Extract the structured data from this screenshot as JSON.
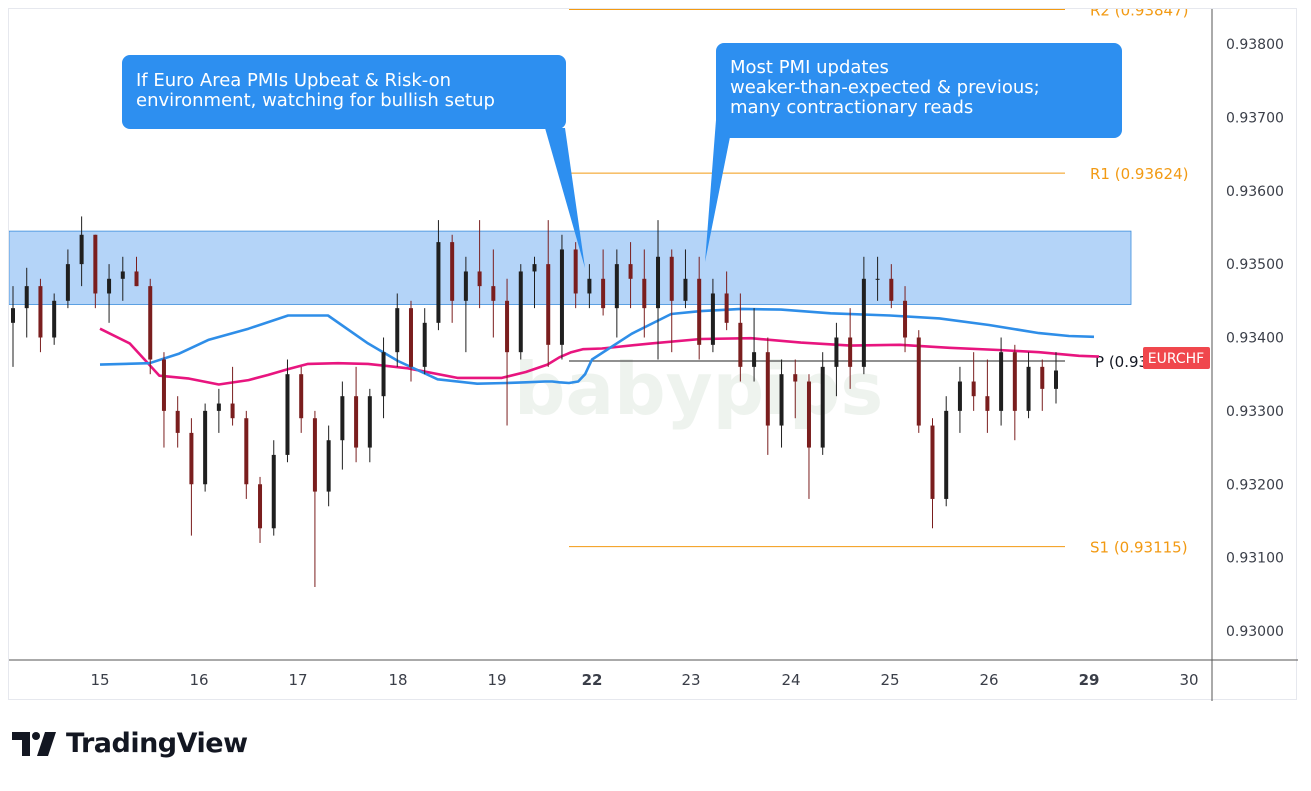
{
  "brand": {
    "name": "TradingView",
    "logo_icon": "tradingview-logo-icon",
    "watermark": "babypips"
  },
  "symbol_tag": "EURCHF",
  "callouts": [
    {
      "lines": [
        "If Euro Area PMIs Upbeat & Risk-on",
        "environment, watching for bullish setup"
      ]
    },
    {
      "lines": [
        "Most PMI updates",
        "weaker-than-expected & previous;",
        "many contractionary reads"
      ]
    }
  ],
  "colors": {
    "up_candle": "#1f1f1f",
    "down_candle": "#7a1e1e",
    "ma_fast": "#e8157f",
    "ma_slow": "#2f8ee8",
    "zone_fill": "#a7cdf7",
    "pivot_line": "#f29a13",
    "callout_bg": "#2d8ff0",
    "tag_bg": "#f0474d"
  },
  "chart_data": {
    "type": "candlestick",
    "symbol": "EURCHF",
    "ylim": [
      0.92955,
      0.93857
    ],
    "y_ticks": [
      "0.93000",
      "0.93100",
      "0.93200",
      "0.93300",
      "0.93400",
      "0.93500",
      "0.93600",
      "0.93700",
      "0.93800"
    ],
    "x_ticks": [
      "15",
      "16",
      "17",
      "18",
      "19",
      "22",
      "23",
      "24",
      "25",
      "26",
      "29",
      "30"
    ],
    "grid": false,
    "pivot_levels": [
      {
        "label": "R2 (0.93847)",
        "value": 0.93847
      },
      {
        "label": "R1 (0.93624)",
        "value": 0.93624
      },
      {
        "label": "P (0.93368)",
        "value": 0.93368
      },
      {
        "label": "S1 (0.93115)",
        "value": 0.93115
      }
    ],
    "resistance_zone": {
      "low": 0.93445,
      "high": 0.93545
    },
    "moving_averages": [
      {
        "color": "pink",
        "points": [
          [
            15,
            0.93412
          ],
          [
            15.3,
            0.93392
          ],
          [
            15.6,
            0.93348
          ],
          [
            15.9,
            0.93344
          ],
          [
            16.2,
            0.93336
          ],
          [
            16.5,
            0.93342
          ],
          [
            16.7,
            0.93349
          ],
          [
            16.9,
            0.93357
          ],
          [
            17.1,
            0.93364
          ],
          [
            17.4,
            0.93365
          ],
          [
            17.7,
            0.93364
          ],
          [
            18.1,
            0.93358
          ],
          [
            18.6,
            0.93345
          ],
          [
            19.1,
            0.93345
          ],
          [
            19.6,
            0.93353
          ],
          [
            20.1,
            0.93363
          ],
          [
            20.6,
            0.93373
          ],
          [
            21.1,
            0.9338
          ],
          [
            21.6,
            0.93384
          ],
          [
            22.1,
            0.93385
          ],
          [
            22.6,
            0.93392
          ],
          [
            23.1,
            0.93398
          ],
          [
            23.6,
            0.93399
          ],
          [
            24.1,
            0.93393
          ],
          [
            24.6,
            0.93389
          ],
          [
            25.1,
            0.9339
          ],
          [
            25.6,
            0.93386
          ],
          [
            26.1,
            0.93383
          ],
          [
            26.5,
            0.9338
          ],
          [
            26.9,
            0.93375
          ],
          [
            27.1,
            0.93374
          ]
        ]
      },
      {
        "color": "blue",
        "points": [
          [
            15,
            0.93363
          ],
          [
            15.5,
            0.93365
          ],
          [
            15.8,
            0.93378
          ],
          [
            16.1,
            0.93397
          ],
          [
            16.5,
            0.93412
          ],
          [
            16.9,
            0.9343
          ],
          [
            17.3,
            0.9343
          ],
          [
            17.7,
            0.93392
          ],
          [
            18,
            0.93368
          ],
          [
            18.4,
            0.93343
          ],
          [
            18.8,
            0.93337
          ],
          [
            19.2,
            0.93338
          ],
          [
            19.6,
            0.93339
          ],
          [
            20,
            0.9334
          ],
          [
            20.3,
            0.9334
          ],
          [
            20.6,
            0.93339
          ],
          [
            21,
            0.93338
          ],
          [
            21.4,
            0.9334
          ],
          [
            21.7,
            0.9335
          ],
          [
            22,
            0.9337
          ],
          [
            22.4,
            0.93405
          ],
          [
            22.8,
            0.93432
          ],
          [
            23.1,
            0.93436
          ],
          [
            23.5,
            0.93439
          ],
          [
            23.9,
            0.93438
          ],
          [
            24.4,
            0.93433
          ],
          [
            25,
            0.9343
          ],
          [
            25.5,
            0.93426
          ],
          [
            26,
            0.93417
          ],
          [
            26.5,
            0.93406
          ],
          [
            26.8,
            0.93402
          ],
          [
            27.05,
            0.93401
          ]
        ]
      }
    ],
    "candles_ohlc": [
      [
        0.9342,
        0.9347,
        0.9336,
        0.9344
      ],
      [
        0.9344,
        0.93495,
        0.934,
        0.9347
      ],
      [
        0.9347,
        0.9348,
        0.9338,
        0.934
      ],
      [
        0.934,
        0.9346,
        0.9339,
        0.9345
      ],
      [
        0.9345,
        0.9352,
        0.9344,
        0.935
      ],
      [
        0.935,
        0.93565,
        0.9347,
        0.9354
      ],
      [
        0.9354,
        0.9354,
        0.9344,
        0.9346
      ],
      [
        0.9346,
        0.935,
        0.9342,
        0.9348
      ],
      [
        0.9348,
        0.9351,
        0.9345,
        0.9349
      ],
      [
        0.9349,
        0.9351,
        0.9347,
        0.9347
      ],
      [
        0.9347,
        0.9348,
        0.9335,
        0.9337
      ],
      [
        0.9337,
        0.9338,
        0.9325,
        0.933
      ],
      [
        0.933,
        0.9332,
        0.9325,
        0.9327
      ],
      [
        0.9327,
        0.9329,
        0.9313,
        0.932
      ],
      [
        0.932,
        0.9331,
        0.9319,
        0.933
      ],
      [
        0.933,
        0.9333,
        0.9327,
        0.9331
      ],
      [
        0.9331,
        0.9336,
        0.9328,
        0.9329
      ],
      [
        0.9329,
        0.933,
        0.9318,
        0.932
      ],
      [
        0.932,
        0.9321,
        0.9312,
        0.9314
      ],
      [
        0.9314,
        0.9326,
        0.9313,
        0.9324
      ],
      [
        0.9324,
        0.9337,
        0.9323,
        0.9335
      ],
      [
        0.9335,
        0.9336,
        0.9327,
        0.9329
      ],
      [
        0.9329,
        0.933,
        0.9306,
        0.9319
      ],
      [
        0.9319,
        0.9328,
        0.9317,
        0.9326
      ],
      [
        0.9326,
        0.9334,
        0.9322,
        0.9332
      ],
      [
        0.9332,
        0.9336,
        0.9323,
        0.9325
      ],
      [
        0.9325,
        0.9333,
        0.9323,
        0.9332
      ],
      [
        0.9332,
        0.934,
        0.9329,
        0.9338
      ],
      [
        0.9338,
        0.9346,
        0.9336,
        0.9344
      ],
      [
        0.9344,
        0.9345,
        0.9334,
        0.9336
      ],
      [
        0.9336,
        0.9344,
        0.9335,
        0.9342
      ],
      [
        0.9342,
        0.9356,
        0.9341,
        0.9353
      ],
      [
        0.9353,
        0.9354,
        0.9342,
        0.9345
      ],
      [
        0.9345,
        0.9351,
        0.9338,
        0.9349
      ],
      [
        0.9349,
        0.9356,
        0.9344,
        0.9347
      ],
      [
        0.9347,
        0.9352,
        0.934,
        0.9345
      ],
      [
        0.9345,
        0.9348,
        0.9328,
        0.9338
      ],
      [
        0.9338,
        0.935,
        0.9337,
        0.9349
      ],
      [
        0.9349,
        0.9351,
        0.9344,
        0.935
      ],
      [
        0.935,
        0.9356,
        0.9336,
        0.9339
      ],
      [
        0.9339,
        0.9354,
        0.9337,
        0.9352
      ],
      [
        0.9352,
        0.9353,
        0.9344,
        0.9346
      ],
      [
        0.9346,
        0.935,
        0.9344,
        0.9348
      ],
      [
        0.9348,
        0.9352,
        0.9343,
        0.9344
      ],
      [
        0.9344,
        0.9352,
        0.934,
        0.935
      ],
      [
        0.935,
        0.9353,
        0.9344,
        0.9348
      ],
      [
        0.9348,
        0.9352,
        0.934,
        0.9344
      ],
      [
        0.9344,
        0.9356,
        0.9337,
        0.9351
      ],
      [
        0.9351,
        0.9352,
        0.9338,
        0.9345
      ],
      [
        0.9345,
        0.9352,
        0.9344,
        0.9348
      ],
      [
        0.9348,
        0.9351,
        0.9337,
        0.9339
      ],
      [
        0.9339,
        0.9348,
        0.9338,
        0.9346
      ],
      [
        0.9346,
        0.9349,
        0.9341,
        0.9342
      ],
      [
        0.9342,
        0.9346,
        0.9334,
        0.9336
      ],
      [
        0.9336,
        0.9344,
        0.9334,
        0.9338
      ],
      [
        0.9338,
        0.934,
        0.9324,
        0.9328
      ],
      [
        0.9328,
        0.9337,
        0.9325,
        0.9335
      ],
      [
        0.9335,
        0.9337,
        0.9329,
        0.9334
      ],
      [
        0.9334,
        0.9335,
        0.9318,
        0.9325
      ],
      [
        0.9325,
        0.9338,
        0.9324,
        0.9336
      ],
      [
        0.9336,
        0.9342,
        0.9332,
        0.934
      ],
      [
        0.934,
        0.9344,
        0.9333,
        0.9336
      ],
      [
        0.9336,
        0.9351,
        0.9335,
        0.9348
      ],
      [
        0.9348,
        0.9351,
        0.9345,
        0.9348
      ],
      [
        0.9348,
        0.935,
        0.9344,
        0.9345
      ],
      [
        0.9345,
        0.9347,
        0.9338,
        0.934
      ],
      [
        0.934,
        0.9341,
        0.9327,
        0.9328
      ],
      [
        0.9328,
        0.9329,
        0.9314,
        0.9318
      ],
      [
        0.9318,
        0.9332,
        0.9317,
        0.933
      ],
      [
        0.933,
        0.9336,
        0.9327,
        0.9334
      ],
      [
        0.9334,
        0.9338,
        0.933,
        0.9332
      ],
      [
        0.9332,
        0.9337,
        0.9327,
        0.933
      ],
      [
        0.933,
        0.934,
        0.9328,
        0.9338
      ],
      [
        0.9338,
        0.9339,
        0.9326,
        0.933
      ],
      [
        0.933,
        0.9338,
        0.9329,
        0.9336
      ],
      [
        0.9336,
        0.9337,
        0.933,
        0.9333
      ],
      [
        0.9333,
        0.9338,
        0.9331,
        0.93355
      ]
    ]
  }
}
